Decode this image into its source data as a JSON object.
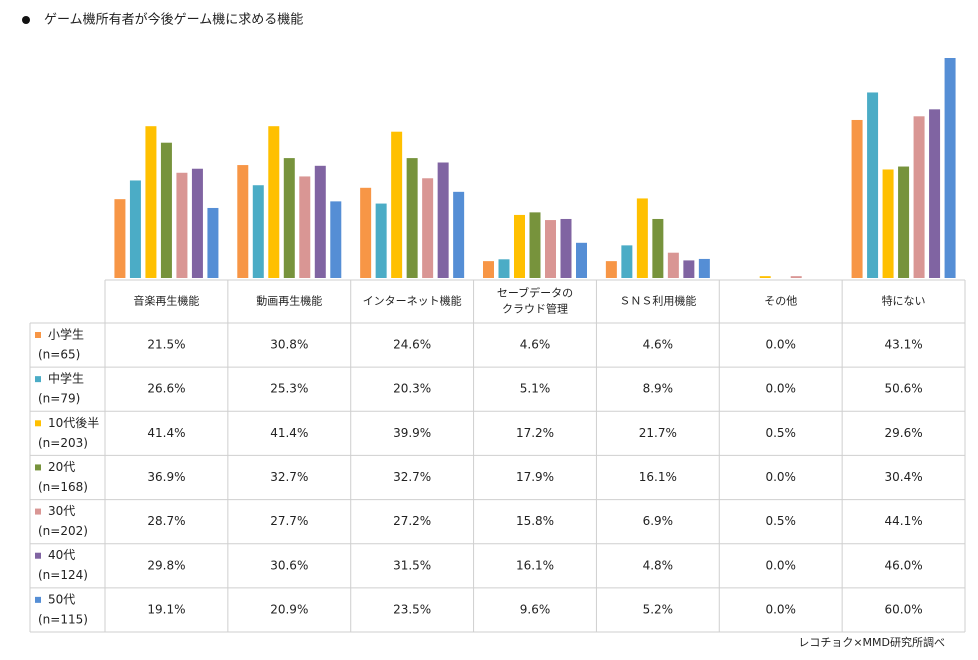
{
  "chart_data": {
    "type": "bar",
    "title": "ゲーム機所有者が今後ゲーム機に求める機能",
    "source": "レコチョク×MMD研究所調べ",
    "categories": [
      "音楽再生機能",
      "動画再生機能",
      "インターネット機能",
      "セーブデータの\nクラウド管理",
      "ＳＮＳ利用機能",
      "その他",
      "特にない"
    ],
    "series": [
      {
        "name": "小学生",
        "sample": "(n=65)",
        "color": "#f79646",
        "values": [
          21.5,
          30.8,
          24.6,
          4.6,
          4.6,
          0.0,
          43.1
        ],
        "value_labels": [
          "21.5%",
          "30.8%",
          "24.6%",
          "4.6%",
          "4.6%",
          "0.0%",
          "43.1%"
        ]
      },
      {
        "name": "中学生",
        "sample": "(n=79)",
        "color": "#4bacc6",
        "values": [
          26.6,
          25.3,
          20.3,
          5.1,
          8.9,
          0.0,
          50.6
        ],
        "value_labels": [
          "26.6%",
          "25.3%",
          "20.3%",
          "5.1%",
          "8.9%",
          "0.0%",
          "50.6%"
        ]
      },
      {
        "name": "10代後半",
        "sample": "(n=203)",
        "color": "#ffc000",
        "values": [
          41.4,
          41.4,
          39.9,
          17.2,
          21.7,
          0.5,
          29.6
        ],
        "value_labels": [
          "41.4%",
          "41.4%",
          "39.9%",
          "17.2%",
          "21.7%",
          "0.5%",
          "29.6%"
        ]
      },
      {
        "name": "20代",
        "sample": "(n=168)",
        "color": "#77933c",
        "values": [
          36.9,
          32.7,
          32.7,
          17.9,
          16.1,
          0.0,
          30.4
        ],
        "value_labels": [
          "36.9%",
          "32.7%",
          "32.7%",
          "17.9%",
          "16.1%",
          "0.0%",
          "30.4%"
        ]
      },
      {
        "name": "30代",
        "sample": "(n=202)",
        "color": "#d99694",
        "values": [
          28.7,
          27.7,
          27.2,
          15.8,
          6.9,
          0.5,
          44.1
        ],
        "value_labels": [
          "28.7%",
          "27.7%",
          "27.2%",
          "15.8%",
          "6.9%",
          "0.5%",
          "44.1%"
        ]
      },
      {
        "name": "40代",
        "sample": "(n=124)",
        "color": "#8064a2",
        "values": [
          29.8,
          30.6,
          31.5,
          16.1,
          4.8,
          0.0,
          46.0
        ],
        "value_labels": [
          "29.8%",
          "30.6%",
          "31.5%",
          "16.1%",
          "4.8%",
          "0.0%",
          "46.0%"
        ]
      },
      {
        "name": "50代",
        "sample": "(n=115)",
        "color": "#558ed5",
        "values": [
          19.1,
          20.9,
          23.5,
          9.6,
          5.2,
          0.0,
          60.0
        ],
        "value_labels": [
          "19.1%",
          "20.9%",
          "23.5%",
          "9.6%",
          "5.2%",
          "0.0%",
          "60.0%"
        ]
      }
    ]
  }
}
